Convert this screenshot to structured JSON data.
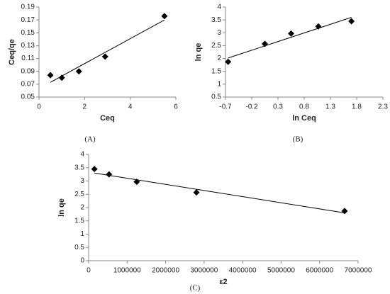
{
  "chart_data": [
    {
      "type": "scatter",
      "panel_label": "(A)",
      "x_label": "Ceq",
      "y_label": "Ceq/qe",
      "marker_color": "#000000",
      "line_color": "#000000",
      "x": [
        0.5,
        1.0,
        1.75,
        2.9,
        5.5
      ],
      "values": [
        0.084,
        0.08,
        0.09,
        0.113,
        0.176
      ],
      "trendline": {
        "x": [
          0.5,
          5.5
        ],
        "y": [
          0.073,
          0.17
        ]
      },
      "xlim": [
        0,
        6
      ],
      "xticks": [
        0,
        2,
        4,
        6
      ],
      "ylim": [
        0.05,
        0.19
      ],
      "yticks": [
        0.05,
        0.07,
        0.09,
        0.11,
        0.13,
        0.15,
        0.17,
        0.19
      ],
      "grid": false
    },
    {
      "type": "scatter",
      "panel_label": "(B)",
      "x_label": "ln Ceq",
      "y_label": "ln qe",
      "marker_color": "#000000",
      "line_color": "#000000",
      "x": [
        -0.65,
        0.05,
        0.55,
        1.07,
        1.7
      ],
      "values": [
        1.87,
        2.57,
        2.97,
        3.25,
        3.45
      ],
      "trendline": {
        "x": [
          -0.65,
          1.7
        ],
        "y": [
          2.02,
          3.6
        ]
      },
      "xlim": [
        -0.7,
        2.3
      ],
      "xticks": [
        -0.7,
        -0.2,
        0.3,
        0.8,
        1.3,
        1.8,
        2.3
      ],
      "ylim": [
        0.5,
        4
      ],
      "yticks": [
        0.5,
        1,
        1.5,
        2,
        2.5,
        3,
        3.5,
        4
      ],
      "grid": false
    },
    {
      "type": "scatter",
      "panel_label": "(C)",
      "x_label": "ε2",
      "y_label": "ln qe",
      "marker_color": "#000000",
      "line_color": "#000000",
      "x": [
        150000,
        530000,
        1250000,
        2800000,
        6650000
      ],
      "values": [
        3.45,
        3.25,
        2.97,
        2.57,
        1.87
      ],
      "trendline": {
        "x": [
          150000,
          6650000
        ],
        "y": [
          3.3,
          1.8
        ]
      },
      "xlim": [
        0,
        7000000
      ],
      "xticks": [
        0,
        1000000,
        2000000,
        3000000,
        4000000,
        5000000,
        6000000,
        7000000
      ],
      "ylim": [
        0,
        4
      ],
      "yticks": [
        0,
        0.5,
        1,
        1.5,
        2,
        2.5,
        3,
        3.5,
        4
      ],
      "grid": false
    }
  ]
}
